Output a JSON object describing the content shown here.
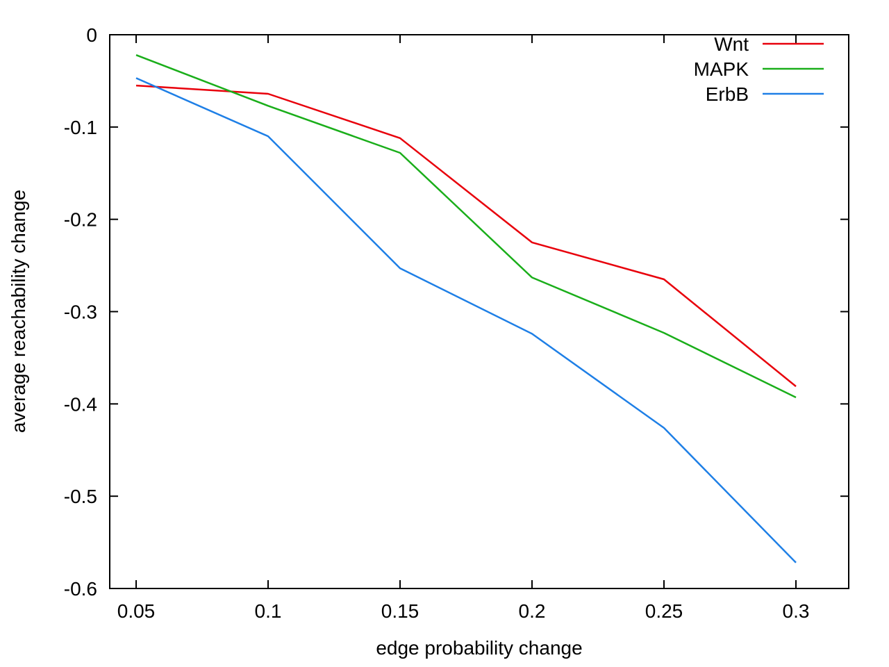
{
  "chart_data": {
    "type": "line",
    "title": "",
    "xlabel": "edge probability change",
    "ylabel": "average reachability change",
    "x": [
      0.05,
      0.1,
      0.15,
      0.2,
      0.25,
      0.3
    ],
    "xlim": [
      0.04,
      0.32
    ],
    "ylim": [
      -0.6,
      0.0
    ],
    "xticks": [
      "0.05",
      "0.1",
      "0.15",
      "0.2",
      "0.25",
      "0.3"
    ],
    "yticks": [
      "0",
      "-0.1",
      "-0.2",
      "-0.3",
      "-0.4",
      "-0.5",
      "-0.6"
    ],
    "grid": false,
    "legend_position": "top-right",
    "series": [
      {
        "name": "Wnt",
        "color": "#e8000b",
        "values": [
          -0.055,
          -0.064,
          -0.112,
          -0.225,
          -0.265,
          -0.381
        ]
      },
      {
        "name": "MAPK",
        "color": "#1aae1a",
        "values": [
          -0.022,
          -0.077,
          -0.128,
          -0.263,
          -0.323,
          -0.393
        ]
      },
      {
        "name": "ErbB",
        "color": "#1e7fe6",
        "values": [
          -0.047,
          -0.11,
          -0.253,
          -0.324,
          -0.426,
          -0.572
        ]
      }
    ]
  }
}
